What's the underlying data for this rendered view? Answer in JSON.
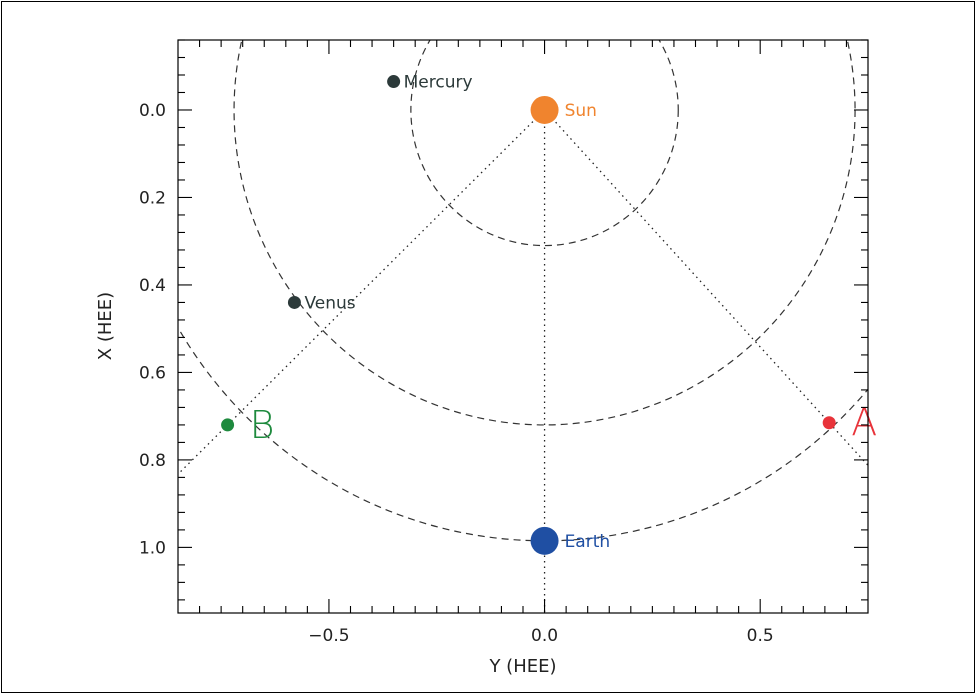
{
  "chart_data": {
    "type": "scatter",
    "title": "",
    "xlabel": "Y (HEE)",
    "ylabel": "X (HEE)",
    "xlim": [
      -0.85,
      0.75
    ],
    "ylim": [
      1.15,
      -0.16
    ],
    "x_ticks": [
      {
        "value": -0.5,
        "label": "−0.5"
      },
      {
        "value": 0.0,
        "label": "0.0"
      },
      {
        "value": 0.5,
        "label": "0.5"
      }
    ],
    "y_ticks": [
      {
        "value": 0.0,
        "label": "0.0"
      },
      {
        "value": 0.2,
        "label": "0.2"
      },
      {
        "value": 0.4,
        "label": "0.4"
      },
      {
        "value": 0.6,
        "label": "0.6"
      },
      {
        "value": 0.8,
        "label": "0.8"
      },
      {
        "value": 1.0,
        "label": "1.0"
      }
    ],
    "bodies": [
      {
        "name": "Sun",
        "y": 0.0,
        "x": 0.0,
        "color": "#f0842e",
        "size": "large"
      },
      {
        "name": "Mercury",
        "y": -0.35,
        "x": -0.065,
        "color": "#2c3a3a",
        "size": "small"
      },
      {
        "name": "Venus",
        "y": -0.58,
        "x": 0.44,
        "color": "#2c3a3a",
        "size": "small"
      },
      {
        "name": "Earth",
        "y": 0.0,
        "x": 0.985,
        "color": "#1f4fa3",
        "size": "large"
      },
      {
        "name": "A",
        "y": 0.66,
        "x": 0.715,
        "color": "#e8333a",
        "size": "small"
      },
      {
        "name": "B",
        "y": -0.735,
        "x": 0.72,
        "color": "#1e8a3e",
        "size": "small"
      }
    ],
    "orbits": [
      {
        "name": "Mercury",
        "radius": 0.31
      },
      {
        "name": "Venus",
        "radius": 0.72
      },
      {
        "name": "Earth",
        "radius": 0.985
      }
    ],
    "sight_lines": [
      {
        "from": "Sun",
        "to": "Earth"
      },
      {
        "from": "Sun",
        "to": "A"
      },
      {
        "from": "Sun",
        "to": "B"
      }
    ],
    "grid": false
  }
}
